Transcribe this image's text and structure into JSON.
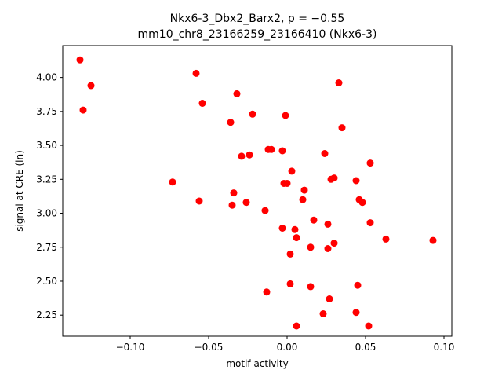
{
  "chart_data": {
    "type": "scatter",
    "title_line1": "Nkx6-3_Dbx2_Barx2, ρ = −0.55",
    "title_line2": "mm10_chr8_23166259_23166410 (Nkx6-3)",
    "xlabel": "motif activity",
    "ylabel": "signal at CRE (ln)",
    "xlim": [
      -0.143,
      0.105
    ],
    "ylim": [
      2.095,
      4.235
    ],
    "xticks": [
      -0.1,
      -0.05,
      0.0,
      0.05,
      0.1
    ],
    "xtick_labels": [
      "−0.10",
      "−0.05",
      "0.00",
      "0.05",
      "0.10"
    ],
    "yticks": [
      2.25,
      2.5,
      2.75,
      3.0,
      3.25,
      3.5,
      3.75,
      4.0
    ],
    "ytick_labels": [
      "2.25",
      "2.50",
      "2.75",
      "3.00",
      "3.25",
      "3.50",
      "3.75",
      "4.00"
    ],
    "grid": false,
    "marker_color": "#ff0000",
    "points": [
      [
        -0.132,
        4.13
      ],
      [
        -0.125,
        3.94
      ],
      [
        -0.13,
        3.76
      ],
      [
        -0.058,
        4.03
      ],
      [
        -0.054,
        3.81
      ],
      [
        -0.032,
        3.88
      ],
      [
        -0.036,
        3.67
      ],
      [
        -0.022,
        3.73
      ],
      [
        -0.001,
        3.72
      ],
      [
        0.033,
        3.96
      ],
      [
        0.035,
        3.63
      ],
      [
        -0.012,
        3.47
      ],
      [
        -0.01,
        3.47
      ],
      [
        -0.003,
        3.46
      ],
      [
        -0.029,
        3.42
      ],
      [
        -0.024,
        3.43
      ],
      [
        0.003,
        3.31
      ],
      [
        0.024,
        3.44
      ],
      [
        -0.073,
        3.23
      ],
      [
        -0.002,
        3.22
      ],
      [
        0.0,
        3.22
      ],
      [
        0.028,
        3.25
      ],
      [
        0.03,
        3.26
      ],
      [
        0.044,
        3.24
      ],
      [
        0.053,
        3.37
      ],
      [
        -0.034,
        3.15
      ],
      [
        -0.056,
        3.09
      ],
      [
        -0.035,
        3.06
      ],
      [
        -0.026,
        3.08
      ],
      [
        0.011,
        3.17
      ],
      [
        0.01,
        3.1
      ],
      [
        0.046,
        3.1
      ],
      [
        0.048,
        3.08
      ],
      [
        -0.014,
        3.02
      ],
      [
        0.017,
        2.95
      ],
      [
        0.026,
        2.92
      ],
      [
        0.053,
        2.93
      ],
      [
        -0.003,
        2.89
      ],
      [
        0.005,
        2.88
      ],
      [
        0.006,
        2.82
      ],
      [
        0.015,
        2.75
      ],
      [
        0.026,
        2.74
      ],
      [
        0.03,
        2.78
      ],
      [
        0.002,
        2.7
      ],
      [
        0.063,
        2.81
      ],
      [
        0.093,
        2.8
      ],
      [
        0.002,
        2.48
      ],
      [
        0.015,
        2.46
      ],
      [
        0.045,
        2.47
      ],
      [
        -0.013,
        2.42
      ],
      [
        0.027,
        2.37
      ],
      [
        0.023,
        2.26
      ],
      [
        0.044,
        2.27
      ],
      [
        0.006,
        2.17
      ],
      [
        0.052,
        2.17
      ]
    ]
  }
}
